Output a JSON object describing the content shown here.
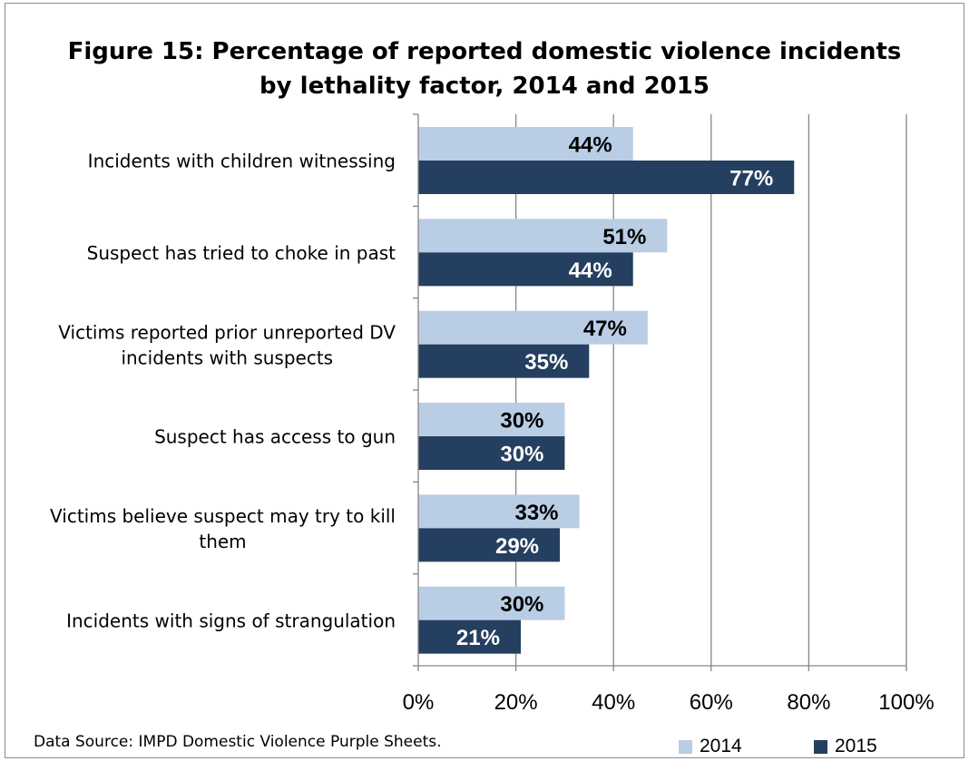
{
  "chart_data": {
    "type": "bar",
    "orientation": "horizontal",
    "title_lines": [
      "Figure 15: Percentage of reported domestic violence incidents",
      "by lethality factor, 2014 and 2015"
    ],
    "categories": [
      [
        "Incidents with children witnessing"
      ],
      [
        "Suspect has tried to choke in past"
      ],
      [
        "Victims reported prior unreported DV",
        "incidents with suspects"
      ],
      [
        "Suspect has access to gun"
      ],
      [
        "Victims believe suspect may try to kill",
        "them"
      ],
      [
        "Incidents with signs of strangulation"
      ]
    ],
    "series": [
      {
        "name": "2014",
        "color": "#b9cde5",
        "label_color": "#000000",
        "values": [
          44,
          51,
          47,
          30,
          33,
          30
        ],
        "labels": [
          "44%",
          "51%",
          "47%",
          "30%",
          "33%",
          "30%"
        ]
      },
      {
        "name": "2015",
        "color": "#243f60",
        "label_color": "#ffffff",
        "values": [
          77,
          44,
          35,
          30,
          29,
          21
        ],
        "labels": [
          "77%",
          "44%",
          "35%",
          "30%",
          "29%",
          "21%"
        ]
      }
    ],
    "xlim": [
      0,
      100
    ],
    "xticks": [
      0,
      20,
      40,
      60,
      80,
      100
    ],
    "xtick_labels": [
      "0%",
      "20%",
      "40%",
      "60%",
      "80%",
      "100%"
    ],
    "grid": true,
    "legend_position": "bottom-right",
    "gridline_color": "#868686",
    "axis_color": "#868686"
  },
  "source_note": "Data Source: IMPD Domestic Violence Purple Sheets."
}
